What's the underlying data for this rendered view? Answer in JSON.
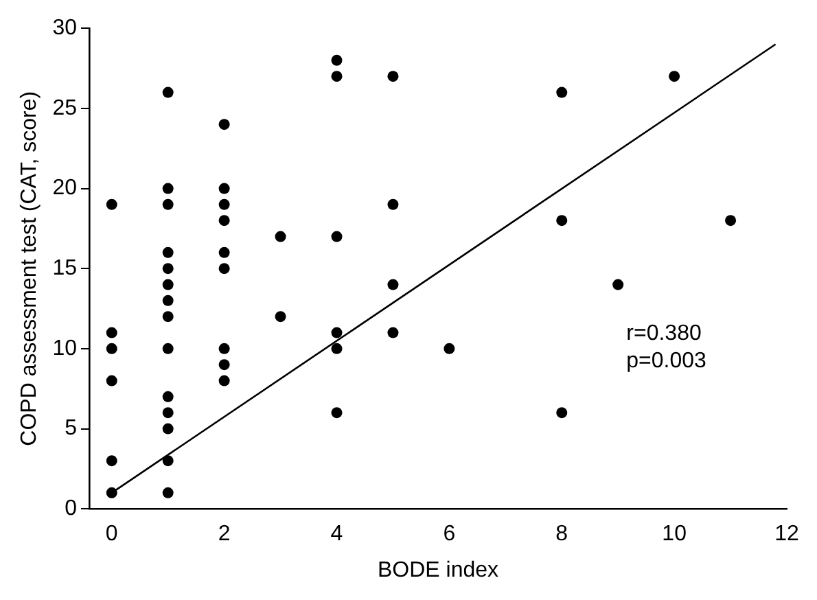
{
  "chart_data": {
    "type": "scatter",
    "xlabel": "BODE index",
    "ylabel": "COPD assessment test (CAT, score)",
    "xlim": [
      -0.4,
      12
    ],
    "xticks": [
      0,
      2,
      4,
      6,
      8,
      10,
      12
    ],
    "ylim": [
      0,
      30
    ],
    "yticks": [
      0,
      5,
      10,
      15,
      20,
      25,
      30
    ],
    "grid": false,
    "legend": false,
    "marker": "circle",
    "annotations": [
      "r=0.380",
      "p=0.003"
    ],
    "series": [
      {
        "color": "#000000",
        "x": [
          0,
          0,
          0,
          0,
          0,
          0,
          1,
          1,
          1,
          1,
          1,
          1,
          1,
          1,
          1,
          1,
          1,
          1,
          1,
          1,
          2,
          2,
          2,
          2,
          2,
          2,
          2,
          2,
          2,
          3,
          3,
          4,
          4,
          4,
          4,
          4,
          4,
          5,
          5,
          5,
          5,
          6,
          8,
          8,
          8,
          9,
          10,
          11
        ],
        "values": [
          19,
          11,
          10,
          8,
          3,
          1,
          26,
          20,
          19,
          16,
          15,
          14,
          13,
          12,
          10,
          7,
          6,
          5,
          3,
          1,
          24,
          20,
          19,
          18,
          16,
          15,
          10,
          9,
          8,
          17,
          12,
          28,
          27,
          17,
          11,
          10,
          6,
          27,
          19,
          14,
          11,
          10,
          26,
          18,
          6,
          14,
          27,
          18
        ]
      },
      {
        "type": "line",
        "color": "#000000",
        "marker": "none",
        "line_style": "solid",
        "x": [
          0,
          11.8
        ],
        "values": [
          1,
          29
        ]
      }
    ]
  }
}
